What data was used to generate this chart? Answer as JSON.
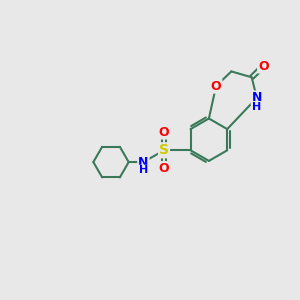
{
  "bg_color": "#e8e8e8",
  "bond_color": "#3a7a5a",
  "bond_width": 1.5,
  "atom_colors": {
    "O": "#ff0000",
    "N": "#0000ff",
    "S": "#cccc00",
    "C": "#3a7a5a"
  },
  "font_size": 9,
  "figsize": [
    3.0,
    3.0
  ],
  "dpi": 100
}
